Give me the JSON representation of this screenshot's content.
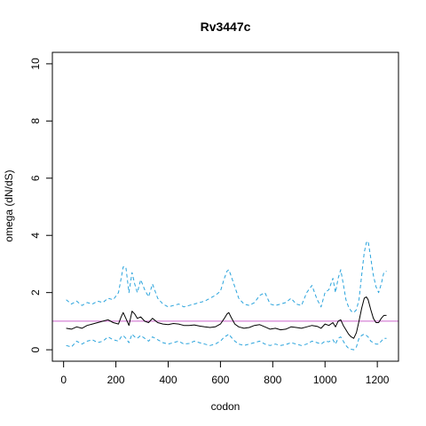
{
  "chart_data": {
    "type": "line",
    "title": "Rv3447c",
    "xlabel": "codon",
    "ylabel": "omega (dN/dS)",
    "xlim": [
      -43,
      1281
    ],
    "ylim": [
      -0.4,
      10.4
    ],
    "x_ticks": [
      0,
      200,
      400,
      600,
      800,
      1000,
      1200
    ],
    "y_ticks": [
      0,
      2,
      4,
      6,
      8,
      10
    ],
    "reference_line": {
      "y": 1,
      "color": "#cc66cc"
    },
    "colors": {
      "estimate": "#000000",
      "bounds": "#29a3dc"
    },
    "series": [
      {
        "key": "upper",
        "style": "dashed",
        "x": [
          10,
          30,
          50,
          70,
          90,
          110,
          130,
          150,
          170,
          190,
          210,
          220,
          228,
          238,
          250,
          262,
          272,
          282,
          295,
          310,
          325,
          340,
          360,
          380,
          400,
          420,
          440,
          460,
          480,
          500,
          520,
          540,
          560,
          580,
          600,
          615,
          625,
          632,
          640,
          655,
          670,
          690,
          710,
          730,
          750,
          770,
          790,
          810,
          830,
          850,
          870,
          890,
          910,
          930,
          950,
          970,
          985,
          1000,
          1015,
          1030,
          1040,
          1050,
          1060,
          1070,
          1080,
          1090,
          1100,
          1110,
          1120,
          1130,
          1140,
          1150,
          1158,
          1165,
          1175,
          1185,
          1195,
          1205,
          1215,
          1225,
          1235
        ],
        "y": [
          1.75,
          1.6,
          1.7,
          1.55,
          1.65,
          1.6,
          1.7,
          1.65,
          1.8,
          1.75,
          2.0,
          2.5,
          2.9,
          2.9,
          2.0,
          2.7,
          2.3,
          2.0,
          2.45,
          2.1,
          1.85,
          2.3,
          1.8,
          1.6,
          1.5,
          1.55,
          1.6,
          1.5,
          1.55,
          1.6,
          1.65,
          1.7,
          1.8,
          1.9,
          2.05,
          2.5,
          2.75,
          2.8,
          2.6,
          2.2,
          1.8,
          1.6,
          1.55,
          1.65,
          1.9,
          2.0,
          1.6,
          1.55,
          1.6,
          1.65,
          1.8,
          1.6,
          1.55,
          2.0,
          2.25,
          1.75,
          1.5,
          2.0,
          2.1,
          2.5,
          2.0,
          2.5,
          2.8,
          2.3,
          1.75,
          1.5,
          1.35,
          1.3,
          1.4,
          1.75,
          2.6,
          3.4,
          3.75,
          3.8,
          3.2,
          2.6,
          2.2,
          2.0,
          2.3,
          2.7,
          2.75
        ]
      },
      {
        "key": "estimate",
        "style": "solid",
        "x": [
          10,
          30,
          50,
          70,
          90,
          110,
          130,
          150,
          170,
          190,
          210,
          220,
          228,
          238,
          250,
          262,
          272,
          282,
          295,
          310,
          325,
          340,
          360,
          380,
          400,
          420,
          440,
          460,
          480,
          500,
          520,
          540,
          560,
          580,
          600,
          615,
          625,
          632,
          640,
          655,
          670,
          690,
          710,
          730,
          750,
          770,
          790,
          810,
          830,
          850,
          870,
          890,
          910,
          930,
          950,
          970,
          985,
          1000,
          1015,
          1030,
          1040,
          1050,
          1060,
          1070,
          1080,
          1090,
          1100,
          1110,
          1120,
          1130,
          1140,
          1150,
          1158,
          1165,
          1175,
          1185,
          1195,
          1205,
          1215,
          1225,
          1235
        ],
        "y": [
          0.75,
          0.72,
          0.8,
          0.75,
          0.85,
          0.9,
          0.95,
          1.0,
          1.05,
          0.95,
          0.9,
          1.15,
          1.3,
          1.1,
          0.85,
          1.35,
          1.25,
          1.1,
          1.15,
          1.0,
          0.95,
          1.1,
          0.95,
          0.9,
          0.88,
          0.92,
          0.9,
          0.85,
          0.85,
          0.87,
          0.83,
          0.8,
          0.78,
          0.8,
          0.9,
          1.1,
          1.25,
          1.3,
          1.15,
          0.9,
          0.8,
          0.75,
          0.78,
          0.85,
          0.88,
          0.8,
          0.72,
          0.75,
          0.7,
          0.72,
          0.8,
          0.78,
          0.75,
          0.8,
          0.85,
          0.82,
          0.75,
          0.9,
          0.85,
          0.95,
          0.8,
          1.0,
          1.05,
          0.85,
          0.7,
          0.55,
          0.45,
          0.4,
          0.6,
          1.0,
          1.45,
          1.8,
          1.85,
          1.75,
          1.4,
          1.1,
          0.95,
          0.95,
          1.1,
          1.2,
          1.2
        ]
      },
      {
        "key": "lower",
        "style": "dashed",
        "x": [
          10,
          30,
          50,
          70,
          90,
          110,
          130,
          150,
          170,
          190,
          210,
          220,
          228,
          238,
          250,
          262,
          272,
          282,
          295,
          310,
          325,
          340,
          360,
          380,
          400,
          420,
          440,
          460,
          480,
          500,
          520,
          540,
          560,
          580,
          600,
          615,
          625,
          632,
          640,
          655,
          670,
          690,
          710,
          730,
          750,
          770,
          790,
          810,
          830,
          850,
          870,
          890,
          910,
          930,
          950,
          970,
          985,
          1000,
          1015,
          1030,
          1040,
          1050,
          1060,
          1070,
          1080,
          1090,
          1100,
          1110,
          1120,
          1130,
          1140,
          1150,
          1158,
          1165,
          1175,
          1185,
          1195,
          1205,
          1215,
          1225,
          1235
        ],
        "y": [
          0.15,
          0.1,
          0.3,
          0.2,
          0.3,
          0.35,
          0.25,
          0.3,
          0.45,
          0.35,
          0.3,
          0.45,
          0.5,
          0.4,
          0.25,
          0.55,
          0.45,
          0.4,
          0.5,
          0.4,
          0.3,
          0.45,
          0.35,
          0.25,
          0.2,
          0.25,
          0.3,
          0.2,
          0.22,
          0.3,
          0.25,
          0.2,
          0.15,
          0.2,
          0.3,
          0.45,
          0.5,
          0.55,
          0.45,
          0.3,
          0.2,
          0.15,
          0.2,
          0.25,
          0.3,
          0.2,
          0.15,
          0.2,
          0.15,
          0.18,
          0.25,
          0.2,
          0.15,
          0.2,
          0.3,
          0.25,
          0.2,
          0.3,
          0.28,
          0.35,
          0.2,
          0.4,
          0.45,
          0.3,
          0.15,
          0.05,
          0.02,
          0.0,
          0.1,
          0.4,
          0.5,
          0.55,
          0.5,
          0.45,
          0.3,
          0.25,
          0.2,
          0.2,
          0.3,
          0.4,
          0.4
        ]
      }
    ]
  }
}
